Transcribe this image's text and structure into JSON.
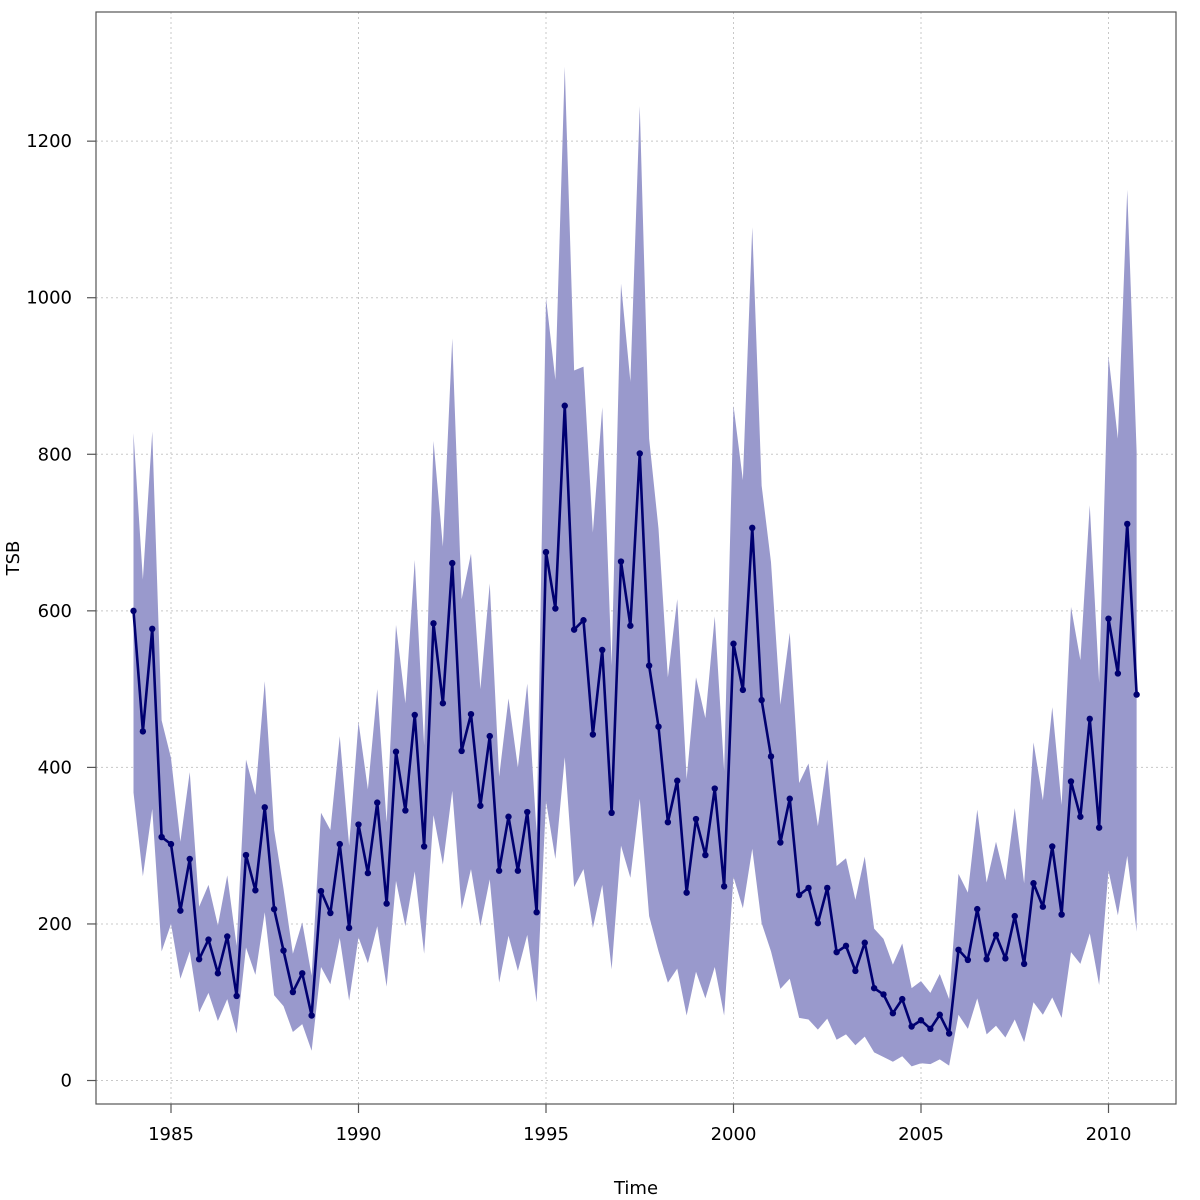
{
  "chart_data": {
    "type": "line",
    "title": "",
    "xlabel": "Time",
    "ylabel": "TSB",
    "xlim": [
      1983.0,
      2011.8
    ],
    "ylim": [
      -30,
      1365
    ],
    "x_ticks": [
      1985,
      1990,
      1995,
      2000,
      2005,
      2010
    ],
    "y_ticks": [
      0,
      200,
      400,
      600,
      800,
      1000,
      1200
    ],
    "x_tick_labels": [
      "1985",
      "1990",
      "1995",
      "2000",
      "2005",
      "2010"
    ],
    "y_tick_labels": [
      "0",
      "200",
      "400",
      "600",
      "800",
      "1000",
      "1200"
    ],
    "grid": true,
    "x_start": 1984.0,
    "x_step": 0.25,
    "colors": {
      "line": "#000070",
      "band": "#9999cc",
      "grid": "#c8c8c8",
      "axis": "#555555"
    },
    "series": [
      {
        "values": [
          600,
          446,
          577,
          311,
          302,
          217,
          283,
          155,
          180,
          137,
          184,
          108,
          288,
          243,
          349,
          219,
          166,
          113,
          137,
          83,
          242,
          214,
          302,
          195,
          327,
          265,
          355,
          226,
          420,
          345,
          467,
          299,
          584,
          482,
          661,
          421,
          468,
          351,
          440,
          268,
          337,
          268,
          343,
          215,
          675,
          603,
          862,
          576,
          588,
          442,
          550,
          342,
          663,
          581,
          801,
          530,
          452,
          330,
          383,
          240,
          334,
          288,
          373,
          248,
          558,
          499,
          706,
          486,
          414,
          304,
          360,
          237,
          246,
          201,
          246,
          164,
          172,
          140,
          176,
          118,
          110,
          86,
          104,
          69,
          77,
          66,
          84,
          60,
          167,
          154,
          219,
          155,
          186,
          156,
          210,
          149,
          252,
          222,
          299,
          212,
          382,
          337,
          462,
          323,
          590,
          520,
          711,
          493
        ]
      }
    ],
    "band": {
      "upper": [
        827,
        640,
        829,
        460,
        412,
        305,
        394,
        222,
        250,
        198,
        262,
        172,
        410,
        365,
        510,
        320,
        245,
        162,
        202,
        134,
        342,
        320,
        440,
        300,
        458,
        372,
        500,
        330,
        582,
        482,
        665,
        428,
        817,
        682,
        948,
        615,
        673,
        500,
        635,
        388,
        488,
        400,
        507,
        316,
        1000,
        895,
        1295,
        907,
        912,
        700,
        860,
        530,
        1018,
        893,
        1245,
        820,
        705,
        515,
        615,
        385,
        515,
        463,
        593,
        396,
        862,
        767,
        1090,
        760,
        662,
        480,
        572,
        380,
        405,
        325,
        410,
        274,
        284,
        231,
        286,
        194,
        181,
        148,
        175,
        118,
        127,
        112,
        136,
        104,
        264,
        240,
        346,
        253,
        305,
        256,
        348,
        252,
        432,
        358,
        477,
        352,
        605,
        537,
        735,
        508,
        925,
        820,
        1138,
        803
      ],
      "lower": [
        368,
        261,
        347,
        165,
        200,
        130,
        165,
        87,
        112,
        76,
        104,
        60,
        170,
        135,
        215,
        109,
        95,
        62,
        72,
        38,
        145,
        123,
        182,
        102,
        183,
        150,
        197,
        120,
        255,
        197,
        267,
        162,
        339,
        276,
        370,
        219,
        270,
        197,
        257,
        125,
        185,
        140,
        186,
        100,
        357,
        283,
        413,
        247,
        270,
        195,
        250,
        142,
        300,
        259,
        360,
        210,
        165,
        125,
        143,
        83,
        139,
        105,
        145,
        83,
        260,
        220,
        296,
        201,
        165,
        117,
        130,
        80,
        78,
        65,
        79,
        52,
        59,
        45,
        56,
        36,
        30,
        24,
        31,
        18,
        22,
        21,
        27,
        19,
        84,
        66,
        105,
        59,
        70,
        55,
        78,
        49,
        100,
        84,
        106,
        80,
        164,
        149,
        188,
        122,
        268,
        211,
        287,
        190
      ]
    }
  }
}
